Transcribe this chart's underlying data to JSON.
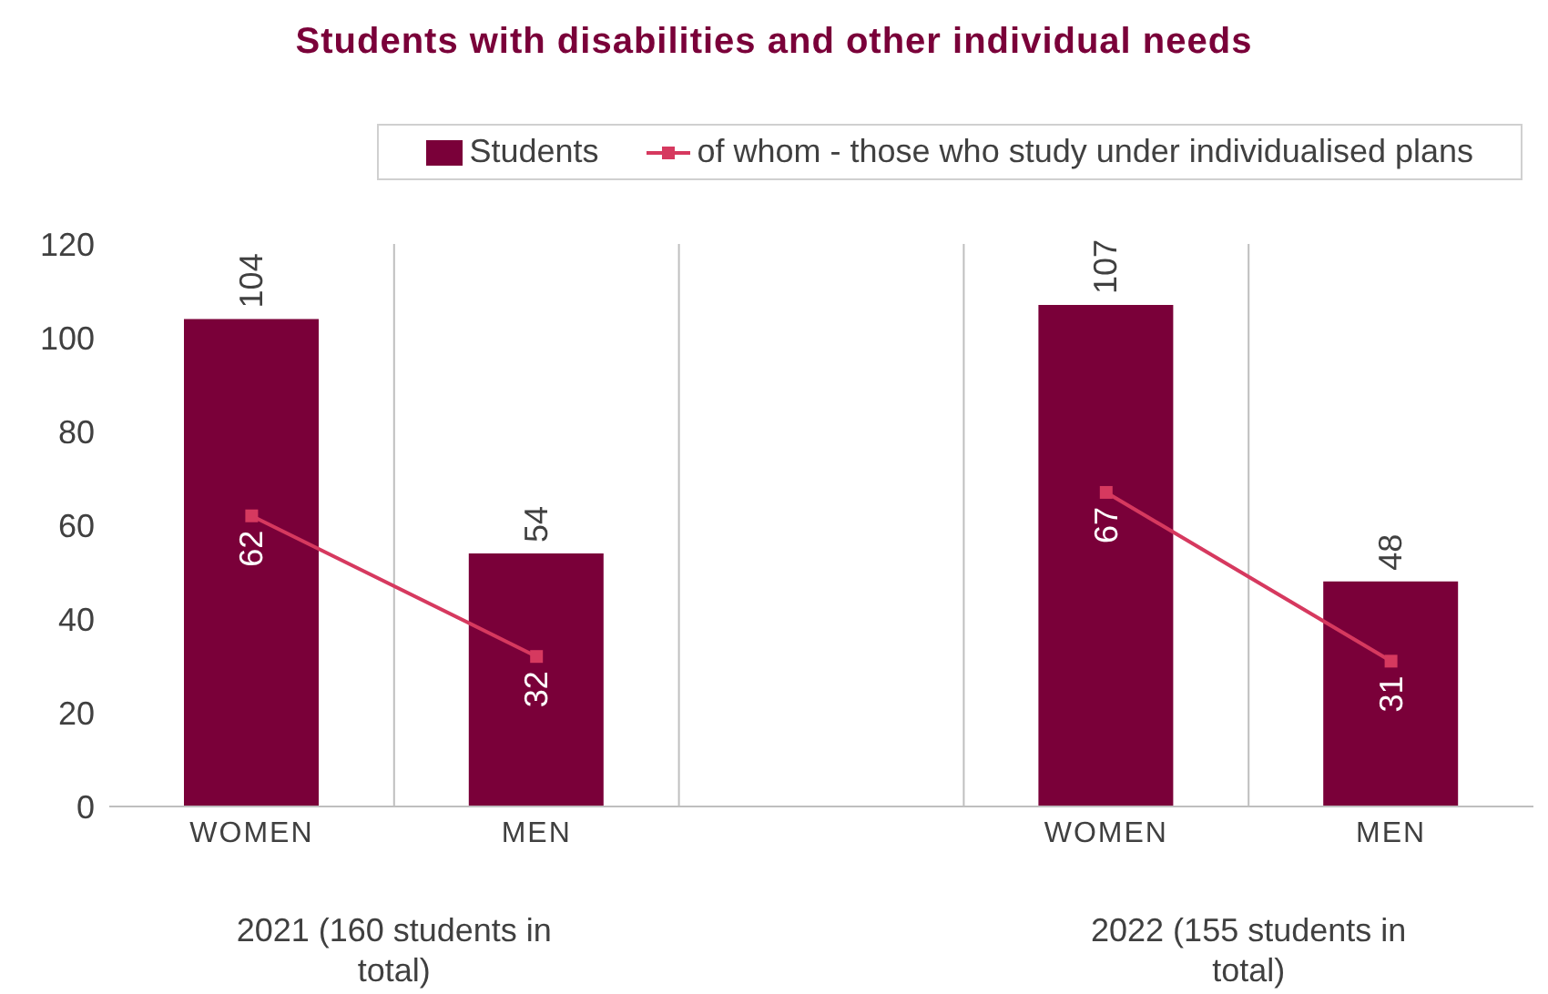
{
  "chart_data": {
    "type": "bar",
    "title": "Students with disabilities and other individual needs",
    "categories": [
      "WOMEN",
      "MEN",
      null,
      "WOMEN",
      "MEN"
    ],
    "series": [
      {
        "name": "Students",
        "color": "#7a0039",
        "values": [
          104,
          54,
          null,
          107,
          48
        ]
      },
      {
        "name": "of whom - those who study under individualised plans",
        "type": "line",
        "color": "#d6395f",
        "values": [
          62,
          32,
          null,
          67,
          31
        ],
        "marker": "square"
      }
    ],
    "ylim": [
      0,
      120
    ],
    "yticks": [
      0,
      20,
      40,
      60,
      80,
      100,
      120
    ],
    "grid": "x",
    "legend": "top right",
    "data_labels": true,
    "annotations": [
      "2021 (160 students in total)",
      "2022 (155 students in total)"
    ]
  }
}
